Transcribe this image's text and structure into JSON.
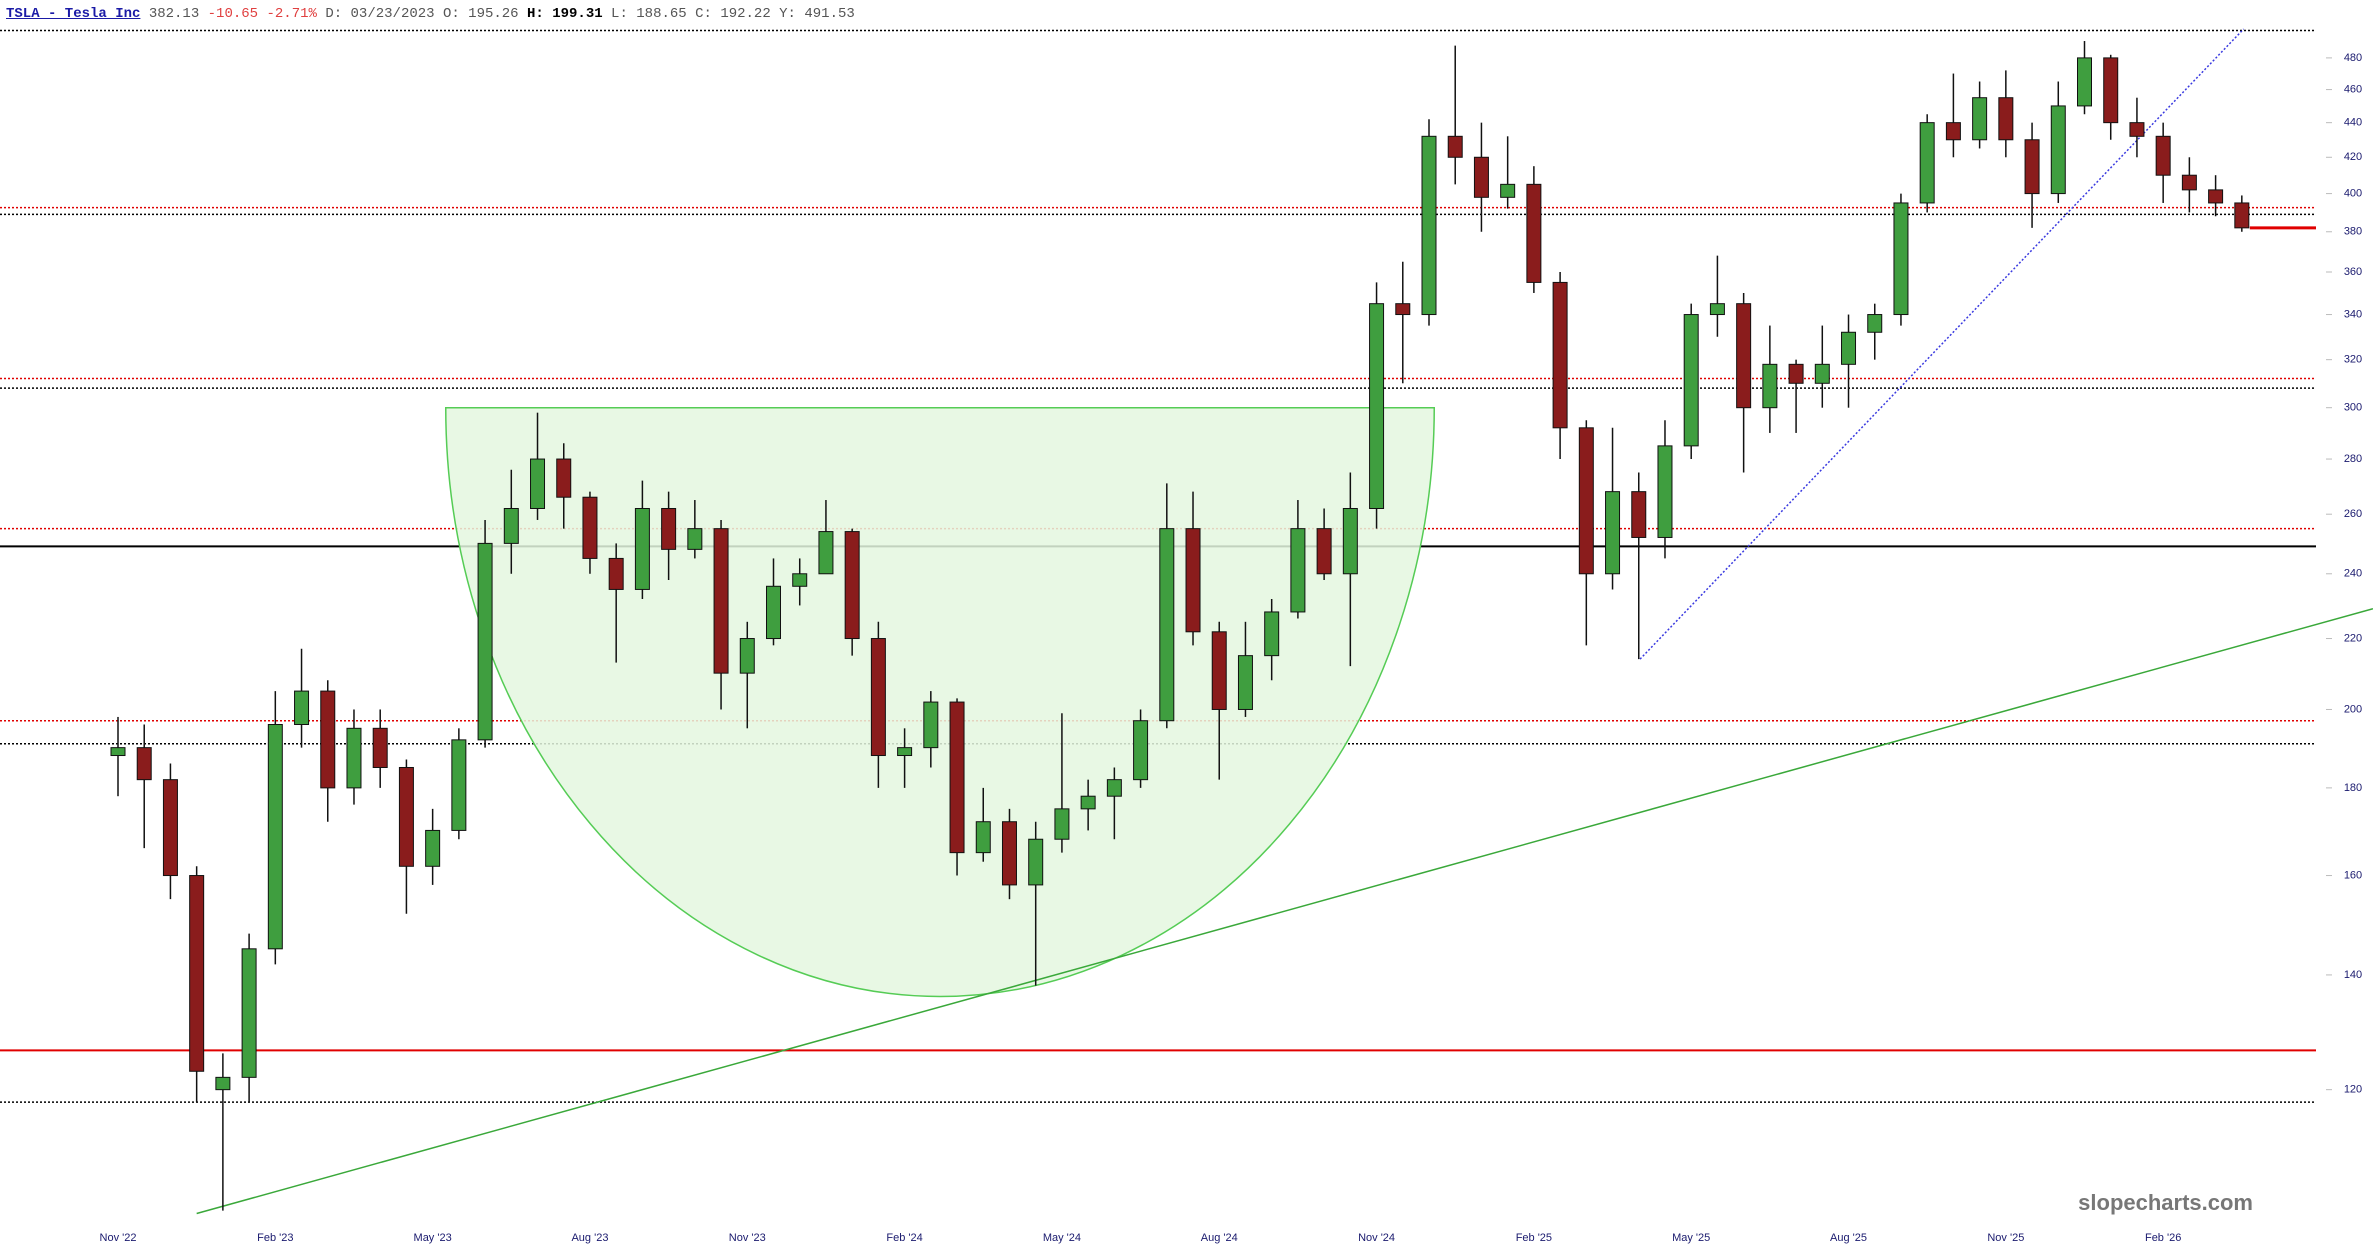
{
  "header": {
    "symbol": "TSLA - Tesla Inc",
    "last": "382.13",
    "change": "-10.65",
    "change_pct": "-2.71%",
    "fields": [
      {
        "label": "D:",
        "value": "03/23/2023"
      },
      {
        "label": "O:",
        "value": "195.26"
      },
      {
        "label": "H:",
        "value": "199.31"
      },
      {
        "label": "L:",
        "value": "188.65"
      },
      {
        "label": "C:",
        "value": "192.22"
      },
      {
        "label": "Y:",
        "value": "491.53"
      }
    ]
  },
  "chart_data": {
    "type": "candlestick",
    "log_scale": true,
    "up_color": "#3f9e3f",
    "down_color": "#8a1c1c",
    "categories": [
      "Nov '22",
      null,
      null,
      null,
      null,
      null,
      "Feb '23",
      null,
      null,
      null,
      null,
      null,
      "May '23",
      null,
      null,
      null,
      null,
      null,
      "Aug '23",
      null,
      null,
      null,
      null,
      null,
      "Nov '23",
      null,
      null,
      null,
      null,
      null,
      "Feb '24",
      null,
      null,
      null,
      null,
      null,
      "May '24",
      null,
      null,
      null,
      null,
      null,
      "Aug '24",
      null,
      null,
      null,
      null,
      null,
      "Nov '24",
      null,
      null,
      null,
      null,
      null,
      "Feb '25",
      null,
      null,
      null,
      null,
      null,
      "May '25",
      null,
      null,
      null,
      null,
      null,
      "Aug '25",
      null,
      null,
      null,
      null,
      null,
      "Nov '25",
      null,
      null,
      null,
      null,
      null,
      "Feb '26",
      null,
      null,
      null
    ],
    "open": [
      188,
      190,
      182,
      160,
      120,
      122,
      145,
      196,
      205,
      180,
      195,
      185,
      162,
      170,
      192,
      250,
      262,
      280,
      266,
      245,
      235,
      262,
      248,
      255,
      210,
      220,
      236,
      240,
      254,
      220,
      188,
      190,
      202,
      165,
      172,
      158,
      168,
      175,
      178,
      182,
      197,
      255,
      222,
      200,
      215,
      228,
      255,
      240,
      262,
      345,
      340,
      432,
      420,
      398,
      405,
      355,
      292,
      240,
      268,
      252,
      285,
      340,
      345,
      300,
      318,
      310,
      318,
      332,
      340,
      395,
      440,
      430,
      455,
      430,
      400,
      450,
      480,
      440,
      432,
      410,
      402,
      395
    ],
    "high": [
      198,
      196,
      186,
      162,
      126,
      148,
      205,
      217,
      208,
      200,
      200,
      187,
      175,
      195,
      258,
      276,
      298,
      286,
      268,
      250,
      272,
      268,
      265,
      258,
      225,
      245,
      245,
      265,
      255,
      225,
      195,
      205,
      203,
      180,
      175,
      172,
      199,
      182,
      185,
      200,
      271,
      268,
      225,
      225,
      232,
      265,
      262,
      275,
      355,
      365,
      442,
      488,
      440,
      432,
      415,
      360,
      295,
      292,
      275,
      295,
      345,
      368,
      350,
      335,
      320,
      335,
      340,
      345,
      400,
      445,
      470,
      465,
      472,
      440,
      465,
      491,
      482,
      455,
      440,
      420,
      410,
      399
    ],
    "low": [
      178,
      166,
      155,
      118,
      102,
      118,
      142,
      190,
      172,
      176,
      180,
      152,
      158,
      168,
      190,
      240,
      258,
      255,
      240,
      213,
      232,
      238,
      245,
      200,
      195,
      218,
      230,
      240,
      215,
      180,
      180,
      185,
      160,
      163,
      155,
      138,
      165,
      170,
      168,
      180,
      195,
      218,
      182,
      198,
      208,
      226,
      238,
      212,
      255,
      310,
      335,
      405,
      380,
      392,
      350,
      280,
      218,
      235,
      214,
      245,
      280,
      330,
      275,
      290,
      290,
      300,
      300,
      320,
      335,
      390,
      420,
      425,
      420,
      382,
      395,
      445,
      430,
      420,
      395,
      390,
      388,
      380
    ],
    "close": [
      190,
      182,
      160,
      123,
      122,
      145,
      196,
      205,
      180,
      195,
      185,
      162,
      170,
      192,
      250,
      262,
      280,
      266,
      245,
      235,
      262,
      248,
      255,
      210,
      220,
      236,
      240,
      254,
      220,
      188,
      190,
      202,
      165,
      172,
      158,
      168,
      175,
      178,
      182,
      197,
      255,
      222,
      200,
      215,
      228,
      255,
      240,
      262,
      345,
      340,
      432,
      420,
      398,
      405,
      355,
      292,
      240,
      268,
      252,
      285,
      340,
      345,
      300,
      318,
      310,
      318,
      332,
      340,
      395,
      440,
      430,
      455,
      430,
      400,
      450,
      480,
      440,
      432,
      410,
      402,
      395,
      382
    ],
    "ylim": [
      101.4,
      499
    ],
    "yticks": [
      120,
      140,
      160,
      180,
      200,
      220,
      240,
      260,
      280,
      300,
      320,
      340,
      360,
      380,
      400,
      420,
      440,
      460,
      480
    ],
    "levels": [
      {
        "value": 498,
        "color": "#000000",
        "style": "dotted"
      },
      {
        "value": 392.5,
        "color": "#e00000",
        "style": "dotted"
      },
      {
        "value": 389,
        "color": "#000000",
        "style": "dotted"
      },
      {
        "value": 312,
        "color": "#e00000",
        "style": "dotted"
      },
      {
        "value": 308,
        "color": "#000000",
        "style": "dotted"
      },
      {
        "value": 255,
        "color": "#e00000",
        "style": "dotted"
      },
      {
        "value": 249,
        "color": "#000000",
        "style": "solid"
      },
      {
        "value": 197,
        "color": "#e00000",
        "style": "dotted"
      },
      {
        "value": 191,
        "color": "#000000",
        "style": "dotted"
      },
      {
        "value": 126.5,
        "color": "#e00000",
        "style": "solid"
      },
      {
        "value": 118,
        "color": "#000000",
        "style": "dotted"
      }
    ],
    "trendlines": [
      {
        "x": [
          3.0,
          86.0
        ],
        "y": [
          101.6,
          229
        ],
        "color": "#3aa83a",
        "style": "solid"
      },
      {
        "x": [
          58.05,
          81.07
        ],
        "y": [
          214,
          499
        ],
        "color": "#3a3ae0",
        "style": "dotted"
      }
    ],
    "cup": {
      "x": [
        12.5,
        50.2
      ],
      "top": 300,
      "bottom": 136,
      "color": "#55cc55",
      "fill": "#e4f7df"
    },
    "watermark": "slopecharts.com"
  }
}
